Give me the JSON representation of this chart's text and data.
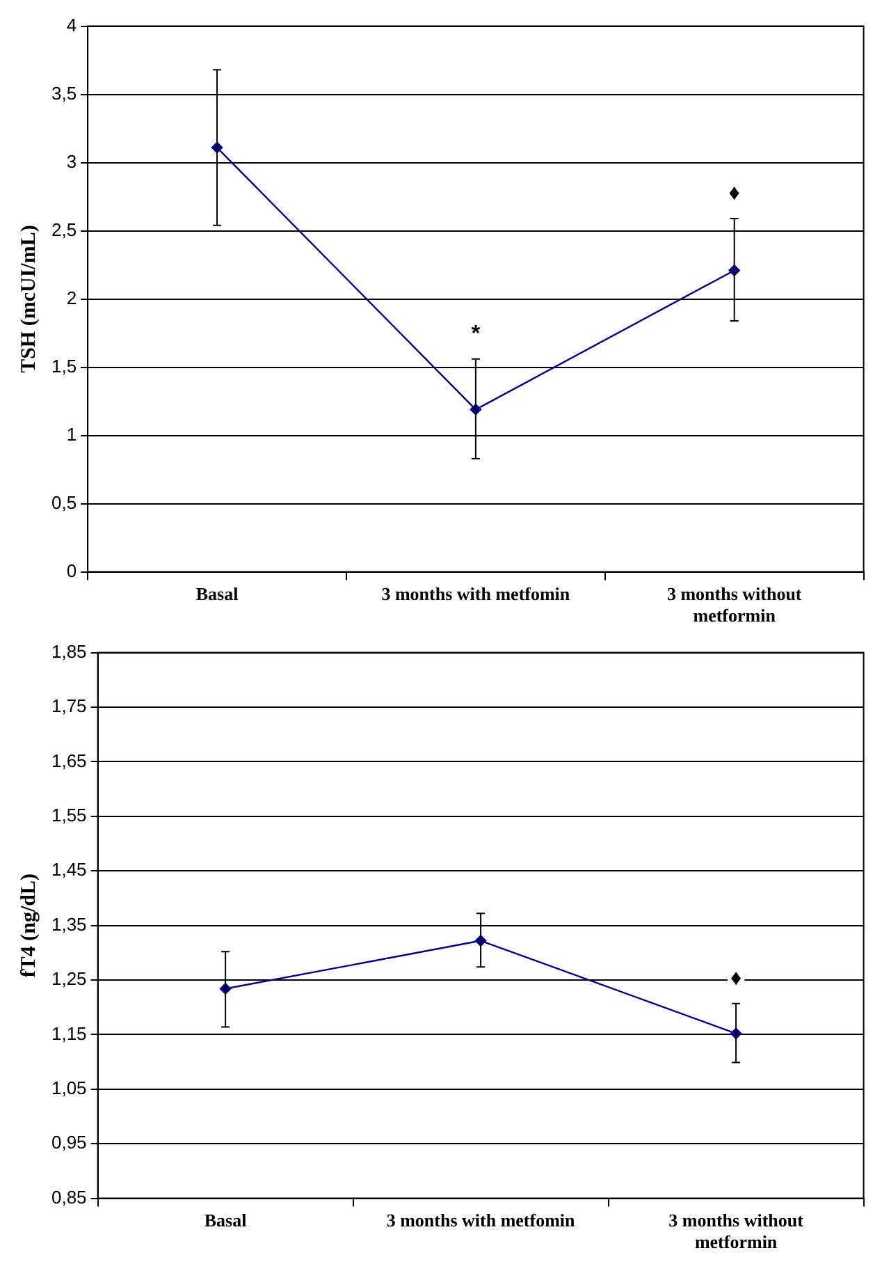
{
  "chart_data": [
    {
      "type": "line",
      "categories": [
        "Basal",
        "3 months with metfomin",
        "3 months without metformin"
      ],
      "ylabel": "TSH (mcUI/mL)",
      "series": [
        {
          "color": "#00008b",
          "values": [
            3.11,
            1.19,
            2.21
          ],
          "errors": [
            [
              2.54,
              3.68
            ],
            [
              0.83,
              1.56
            ],
            [
              1.84,
              2.59
            ]
          ],
          "value_labels": [
            null,
            "*",
            "♦"
          ]
        }
      ],
      "ylim": [
        0,
        4
      ],
      "yticks": [
        0,
        {
          "value": 0.5,
          "label": "0,5"
        },
        1,
        {
          "value": 1.5,
          "label": "1,5"
        },
        2,
        {
          "value": 2.5,
          "label": "2,5"
        },
        3,
        {
          "value": 3.5,
          "label": "3,5"
        },
        4
      ],
      "grid": "y",
      "marker": "diamond",
      "line_style": "solid"
    },
    {
      "type": "line",
      "categories": [
        "Basal",
        "3 months with metfomin",
        "3 months without metformin"
      ],
      "ylabel": "fT4 (ng/dL)",
      "series": [
        {
          "color": "#00008b",
          "values": [
            1.234,
            1.322,
            1.152
          ],
          "errors": [
            [
              1.164,
              1.302
            ],
            [
              1.274,
              1.372
            ],
            [
              1.099,
              1.207
            ]
          ],
          "value_labels": [
            null,
            null,
            "♦"
          ]
        }
      ],
      "ylim": [
        0.85,
        1.85
      ],
      "yticks": [
        {
          "value": 0.85,
          "label": "0,85"
        },
        {
          "value": 0.95,
          "label": "0,95"
        },
        {
          "value": 1.05,
          "label": "1,05"
        },
        {
          "value": 1.15,
          "label": "1,15"
        },
        {
          "value": 1.25,
          "label": "1,25"
        },
        {
          "value": 1.35,
          "label": "1,35"
        },
        {
          "value": 1.45,
          "label": "1,45"
        },
        {
          "value": 1.55,
          "label": "1,55"
        },
        {
          "value": 1.65,
          "label": "1,65"
        },
        {
          "value": 1.75,
          "label": "1,75"
        },
        {
          "value": 1.85,
          "label": "1,85"
        }
      ],
      "grid": "y",
      "marker": "diamond",
      "line_style": "solid"
    }
  ]
}
